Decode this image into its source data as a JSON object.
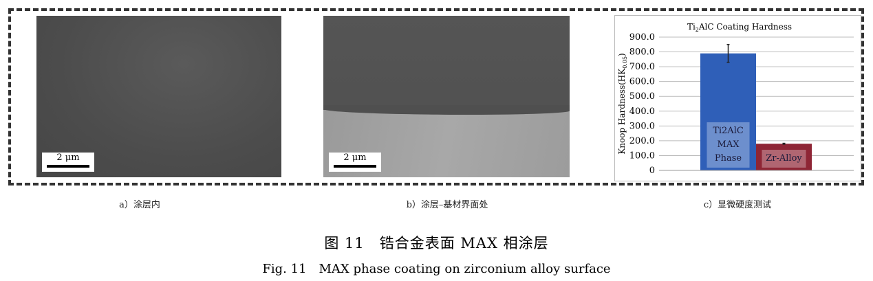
{
  "panels": [
    {
      "caption": "a）涂层内",
      "scale_label": "2 μm"
    },
    {
      "caption": "b）涂层–基材界面处",
      "scale_label": "2 μm"
    },
    {
      "caption": "c）显微硬度测试"
    }
  ],
  "figure": {
    "title_zh": "图 11　锆合金表面 MAX 相涂层",
    "title_en": "Fig. 11　MAX phase coating on zirconium alloy surface"
  },
  "chart_data": {
    "type": "bar",
    "title": "Ti2AlC Coating Hardness",
    "ylabel": "Knoop Hardness(HK0.05)",
    "ylim": [
      0,
      900
    ],
    "yticks": [
      "0",
      "100.0",
      "200.0",
      "300.0",
      "400.0",
      "500.0",
      "600.0",
      "700.0",
      "800.0",
      "900.0"
    ],
    "grid": true,
    "categories": [
      "Ti2AlC MAX Phase",
      "Zr-Alloy"
    ],
    "values": [
      790,
      180
    ],
    "errors": [
      60,
      3
    ],
    "colors": [
      "#2f5fb8",
      "#8e2535"
    ],
    "bar_labels": [
      [
        "Ti2AlC",
        "MAX",
        "Phase"
      ],
      [
        "Zr-Alloy"
      ]
    ]
  }
}
